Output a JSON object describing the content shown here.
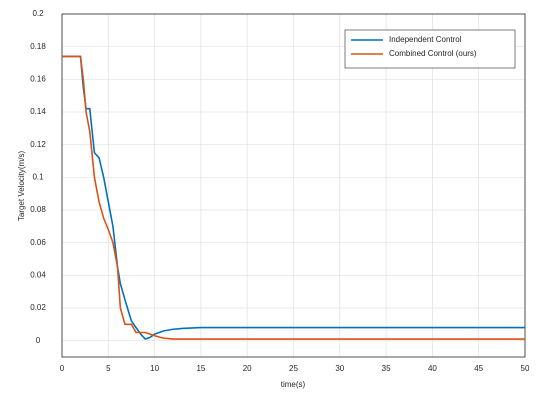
{
  "chart_data": {
    "type": "line",
    "xlabel": "time(s)",
    "ylabel": "Target Velocity(m/s)",
    "x": [
      0,
      2,
      2.3,
      2.6,
      3,
      3.5,
      4,
      4.5,
      5,
      5.5,
      6,
      6.3,
      6.8,
      7.5,
      8,
      8.5,
      9,
      9.5,
      10,
      11,
      12,
      13,
      15,
      20,
      30,
      40,
      50
    ],
    "series": [
      {
        "name": "Independent Control",
        "color": "#0072bd",
        "values": [
          0.174,
          0.174,
          0.155,
          0.142,
          0.142,
          0.115,
          0.112,
          0.1,
          0.085,
          0.07,
          0.045,
          0.035,
          0.025,
          0.012,
          0.008,
          0.004,
          0.001,
          0.002,
          0.004,
          0.006,
          0.007,
          0.0075,
          0.008,
          0.008,
          0.008,
          0.008,
          0.008
        ]
      },
      {
        "name": "Combined Control (ours)",
        "color": "#d95319",
        "values": [
          0.174,
          0.174,
          0.16,
          0.14,
          0.128,
          0.1,
          0.085,
          0.075,
          0.068,
          0.06,
          0.045,
          0.02,
          0.01,
          0.01,
          0.005,
          0.005,
          0.005,
          0.004,
          0.003,
          0.0015,
          0.001,
          0.001,
          0.001,
          0.001,
          0.001,
          0.001,
          0.001
        ]
      }
    ],
    "xlim": [
      0,
      50
    ],
    "xticks": [
      0,
      5,
      10,
      15,
      20,
      25,
      30,
      35,
      40,
      45,
      50
    ],
    "ylim": [
      -0.01,
      0.2
    ],
    "yticks": [
      0,
      0.02,
      0.04,
      0.06,
      0.08,
      0.1,
      0.12,
      0.14,
      0.16,
      0.18,
      0.2
    ],
    "grid": true,
    "legend": "upper right"
  }
}
